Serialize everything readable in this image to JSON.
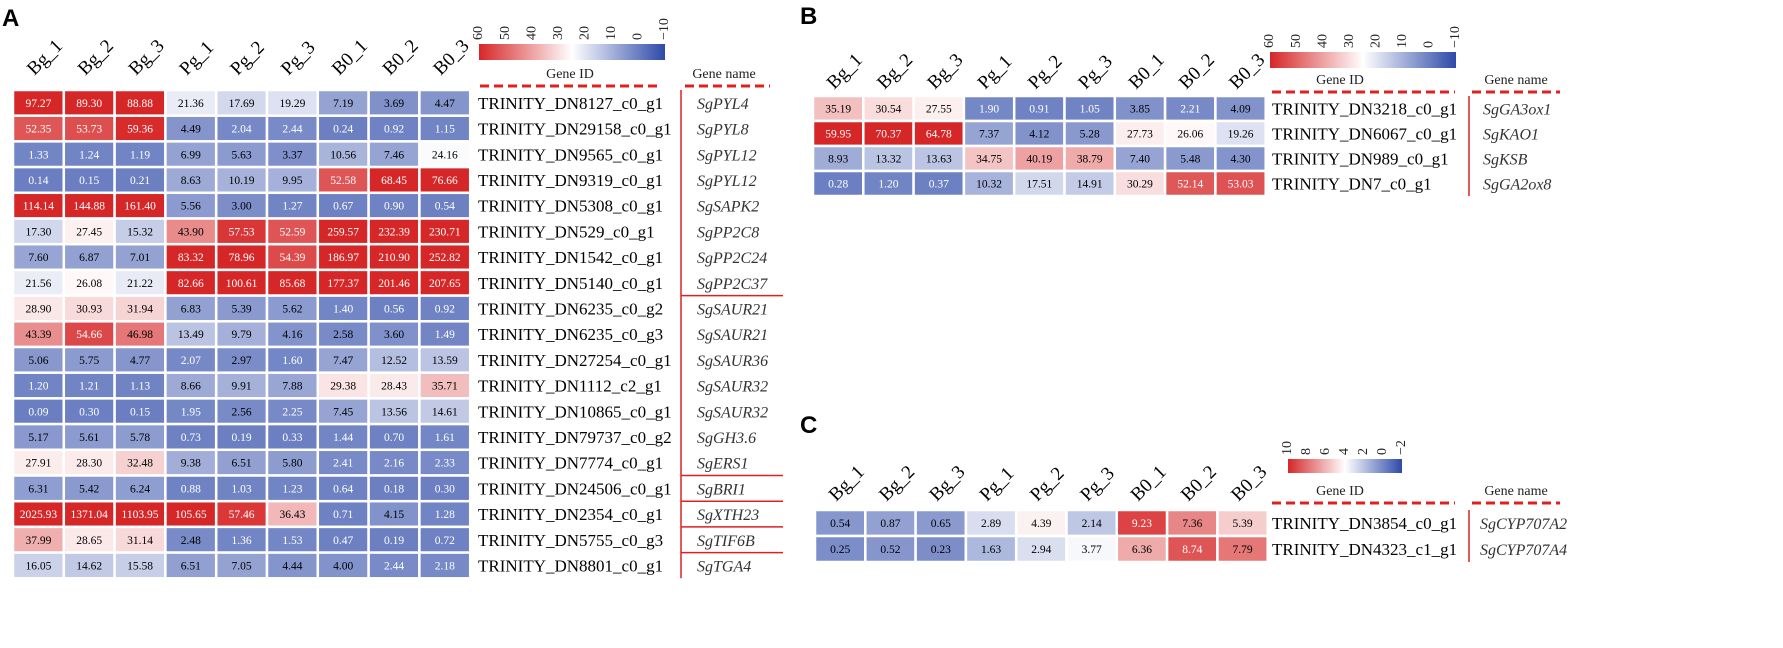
{
  "chart_data": [
    {
      "panel": "A",
      "type": "heatmap",
      "columns": [
        "Bg_1",
        "Bg_2",
        "Bg_3",
        "Pg_1",
        "Pg_2",
        "Pg_3",
        "B0_1",
        "B0_2",
        "B0_3"
      ],
      "legend": {
        "ticks": [
          "60",
          "50",
          "40",
          "30",
          "20",
          "10",
          "0",
          "−10"
        ],
        "min": -10,
        "max": 60
      },
      "header_gene_id": "Gene ID",
      "header_gene_name": "Gene name",
      "rows": [
        {
          "gene_id": "TRINITY_DN8127_c0_g1",
          "gene_name": "SgPYL4",
          "values": [
            "97.27",
            "89.30",
            "88.88",
            "21.36",
            "17.69",
            "19.29",
            "7.19",
            "3.69",
            "4.47"
          ]
        },
        {
          "gene_id": "TRINITY_DN29158_c0_g1",
          "gene_name": "SgPYL8",
          "values": [
            "52.35",
            "53.73",
            "59.36",
            "4.49",
            "2.04",
            "2.44",
            "0.24",
            "0.92",
            "1.15"
          ]
        },
        {
          "gene_id": "TRINITY_DN9565_c0_g1",
          "gene_name": "SgPYL12",
          "values": [
            "1.33",
            "1.24",
            "1.19",
            "6.99",
            "5.63",
            "3.37",
            "10.56",
            "7.46",
            "24.16"
          ]
        },
        {
          "gene_id": "TRINITY_DN9319_c0_g1",
          "gene_name": "SgPYL12",
          "values": [
            "0.14",
            "0.15",
            "0.21",
            "8.63",
            "10.19",
            "9.95",
            "52.58",
            "68.45",
            "76.66"
          ]
        },
        {
          "gene_id": "TRINITY_DN5308_c0_g1",
          "gene_name": "SgSAPK2",
          "values": [
            "114.14",
            "144.88",
            "161.40",
            "5.56",
            "3.00",
            "1.27",
            "0.67",
            "0.90",
            "0.54"
          ]
        },
        {
          "gene_id": "TRINITY_DN529_c0_g1",
          "gene_name": "SgPP2C8",
          "values": [
            "17.30",
            "27.45",
            "15.32",
            "43.90",
            "57.53",
            "52.59",
            "259.57",
            "232.39",
            "230.71"
          ]
        },
        {
          "gene_id": "TRINITY_DN1542_c0_g1",
          "gene_name": "SgPP2C24",
          "values": [
            "7.60",
            "6.87",
            "7.01",
            "83.32",
            "78.96",
            "54.39",
            "186.97",
            "210.90",
            "252.82"
          ]
        },
        {
          "gene_id": "TRINITY_DN5140_c0_g1",
          "gene_name": "SgPP2C37",
          "values": [
            "21.56",
            "26.08",
            "21.22",
            "82.66",
            "100.61",
            "85.68",
            "177.37",
            "201.46",
            "207.65"
          ]
        },
        {
          "gene_id": "TRINITY_DN6235_c0_g2",
          "gene_name": "SgSAUR21",
          "values": [
            "28.90",
            "30.93",
            "31.94",
            "6.83",
            "5.39",
            "5.62",
            "1.40",
            "0.56",
            "0.92"
          ]
        },
        {
          "gene_id": "TRINITY_DN6235_c0_g3",
          "gene_name": "SgSAUR21",
          "values": [
            "43.39",
            "54.66",
            "46.98",
            "13.49",
            "9.79",
            "4.16",
            "2.58",
            "3.60",
            "1.49"
          ]
        },
        {
          "gene_id": "TRINITY_DN27254_c0_g1",
          "gene_name": "SgSAUR36",
          "values": [
            "5.06",
            "5.75",
            "4.77",
            "2.07",
            "2.97",
            "1.60",
            "7.47",
            "12.52",
            "13.59"
          ]
        },
        {
          "gene_id": "TRINITY_DN1112_c2_g1",
          "gene_name": "SgSAUR32",
          "values": [
            "1.20",
            "1.21",
            "1.13",
            "8.66",
            "9.91",
            "7.88",
            "29.38",
            "28.43",
            "35.71"
          ]
        },
        {
          "gene_id": "TRINITY_DN10865_c0_g1",
          "gene_name": "SgSAUR32",
          "values": [
            "0.09",
            "0.30",
            "0.15",
            "1.95",
            "2.56",
            "2.25",
            "7.45",
            "13.56",
            "14.61"
          ]
        },
        {
          "gene_id": "TRINITY_DN79737_c0_g2",
          "gene_name": "SgGH3.6",
          "values": [
            "5.17",
            "5.61",
            "5.78",
            "0.73",
            "0.19",
            "0.33",
            "1.44",
            "0.70",
            "1.61"
          ]
        },
        {
          "gene_id": "TRINITY_DN7774_c0_g1",
          "gene_name": "SgERS1",
          "values": [
            "27.91",
            "28.30",
            "32.48",
            "9.38",
            "6.51",
            "5.80",
            "2.41",
            "2.16",
            "2.33"
          ]
        },
        {
          "gene_id": "TRINITY_DN24506_c0_g1",
          "gene_name": "SgBRI1",
          "values": [
            "6.31",
            "5.42",
            "6.24",
            "0.88",
            "1.03",
            "1.23",
            "0.64",
            "0.18",
            "0.30"
          ]
        },
        {
          "gene_id": "TRINITY_DN2354_c0_g1",
          "gene_name": "SgXTH23",
          "values": [
            "2025.93",
            "1371.04",
            "1103.95",
            "105.65",
            "57.46",
            "36.43",
            "0.71",
            "4.15",
            "1.28"
          ]
        },
        {
          "gene_id": "TRINITY_DN5755_c0_g3",
          "gene_name": "SgTIF6B",
          "values": [
            "37.99",
            "28.65",
            "31.14",
            "2.48",
            "1.36",
            "1.53",
            "0.47",
            "0.19",
            "0.72"
          ]
        },
        {
          "gene_id": "TRINITY_DN8801_c0_g1",
          "gene_name": "SgTGA4",
          "values": [
            "16.05",
            "14.62",
            "15.58",
            "6.51",
            "7.05",
            "4.44",
            "4.00",
            "2.44",
            "2.18"
          ]
        }
      ]
    },
    {
      "panel": "B",
      "type": "heatmap",
      "columns": [
        "Bg_1",
        "Bg_2",
        "Bg_3",
        "Pg_1",
        "Pg_2",
        "Pg_3",
        "B0_1",
        "B0_2",
        "B0_3"
      ],
      "legend": {
        "ticks": [
          "60",
          "50",
          "40",
          "30",
          "20",
          "10",
          "0",
          "−10"
        ],
        "min": -10,
        "max": 60
      },
      "header_gene_id": "Gene ID",
      "header_gene_name": "Gene name",
      "rows": [
        {
          "gene_id": "TRINITY_DN3218_c0_g1",
          "gene_name": "SgGA3ox1",
          "values": [
            "35.19",
            "30.54",
            "27.55",
            "1.90",
            "0.91",
            "1.05",
            "3.85",
            "2.21",
            "4.09"
          ]
        },
        {
          "gene_id": "TRINITY_DN6067_c0_g1",
          "gene_name": "SgKAO1",
          "values": [
            "59.95",
            "70.37",
            "64.78",
            "7.37",
            "4.12",
            "5.28",
            "27.73",
            "26.06",
            "19.26"
          ]
        },
        {
          "gene_id": "TRINITY_DN989_c0_g1",
          "gene_name": "SgKSB",
          "values": [
            "8.93",
            "13.32",
            "13.63",
            "34.75",
            "40.19",
            "38.79",
            "7.40",
            "5.48",
            "4.30"
          ]
        },
        {
          "gene_id": "TRINITY_DN7_c0_g1",
          "gene_name": "SgGA2ox8",
          "values": [
            "0.28",
            "1.20",
            "0.37",
            "10.32",
            "17.51",
            "14.91",
            "30.29",
            "52.14",
            "53.03"
          ]
        }
      ]
    },
    {
      "panel": "C",
      "type": "heatmap",
      "columns": [
        "Bg_1",
        "Bg_2",
        "Bg_3",
        "Pg_1",
        "Pg_2",
        "Pg_3",
        "B0_1",
        "B0_2",
        "B0_3"
      ],
      "legend": {
        "ticks": [
          "10",
          "8",
          "6",
          "4",
          "2",
          "0",
          "−2"
        ],
        "min": -2,
        "max": 10
      },
      "header_gene_id": "Gene ID",
      "header_gene_name": "Gene name",
      "rows": [
        {
          "gene_id": "TRINITY_DN3854_c0_g1",
          "gene_name": "SgCYP707A2",
          "values": [
            "0.54",
            "0.87",
            "0.65",
            "2.89",
            "4.39",
            "2.14",
            "9.23",
            "7.36",
            "5.39"
          ]
        },
        {
          "gene_id": "TRINITY_DN4323_c1_g1",
          "gene_name": "SgCYP707A4",
          "values": [
            "0.25",
            "0.52",
            "0.23",
            "1.63",
            "2.94",
            "3.77",
            "6.36",
            "8.74",
            "7.79"
          ]
        }
      ]
    }
  ],
  "colors": {
    "high": "#d62728",
    "mid": "#ffffff",
    "low": "#2e4aa8",
    "accent": "#e02020"
  }
}
